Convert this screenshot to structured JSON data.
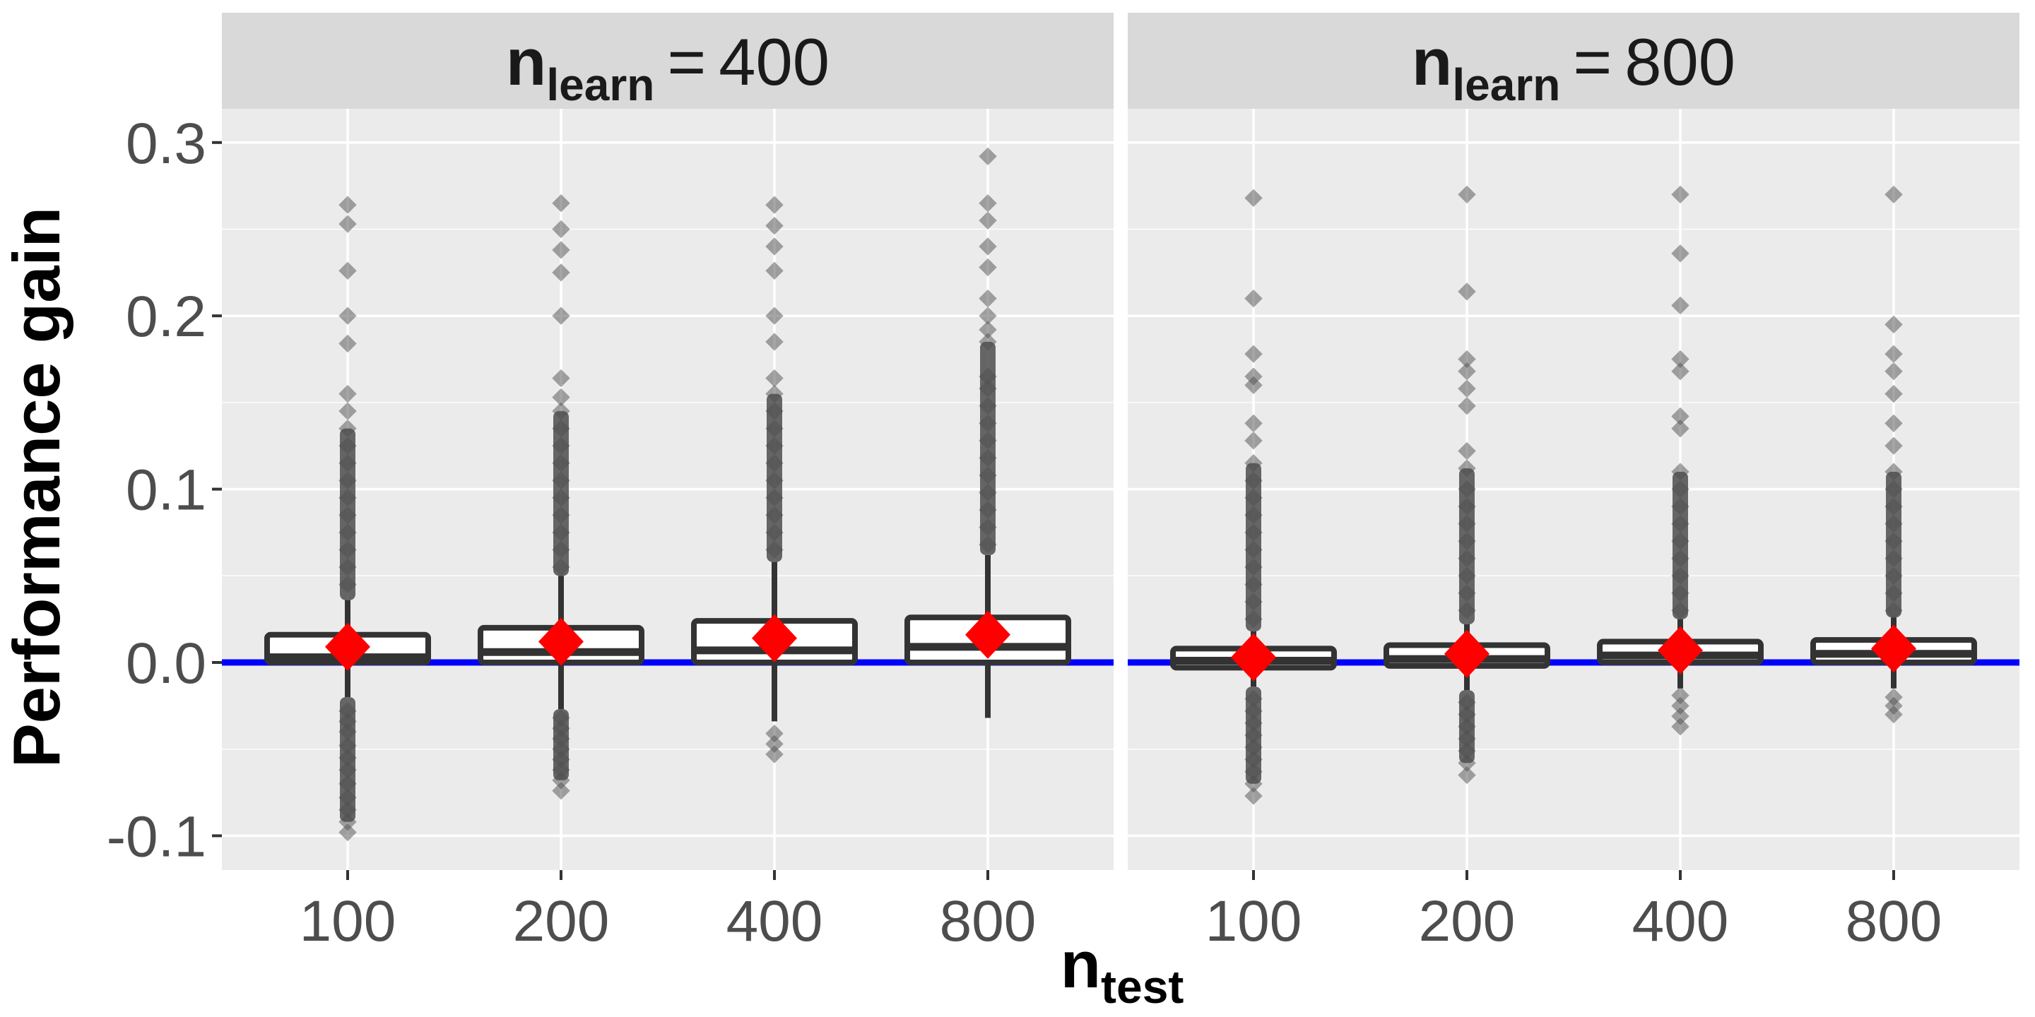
{
  "colors": {
    "panel_bg": "#ebebeb",
    "strip_bg": "#d9d9d9",
    "grid": "#ffffff",
    "box": "#333333",
    "outlier": "#4d4d4d",
    "mean_marker": "#ff0000",
    "reference_line": "#0000ff"
  },
  "chart_data": {
    "type": "boxplot",
    "xlabel": {
      "main": "n",
      "sub": "test"
    },
    "ylabel": "Performance gain",
    "ylim": [
      -0.1,
      0.3
    ],
    "yticks": [
      -0.1,
      0.0,
      0.1,
      0.2,
      0.3
    ],
    "ytick_labels": [
      "-0.1",
      "0.0",
      "0.1",
      "0.2",
      "0.3"
    ],
    "categories": [
      "100",
      "200",
      "400",
      "800"
    ],
    "reference_line_y": 0,
    "grid": true,
    "facets": [
      {
        "label": {
          "main": "n",
          "sub": "learn",
          "rel": "=",
          "value": "400"
        },
        "boxes": [
          {
            "x": "100",
            "q1": 0.0,
            "median": 0.003,
            "q3": 0.016,
            "whisker_low": -0.02,
            "whisker_high": 0.036,
            "mean": 0.009,
            "outliers": [
              -0.098,
              -0.092,
              -0.085,
              -0.078,
              -0.07,
              -0.062,
              -0.055,
              -0.048,
              -0.04,
              -0.034,
              -0.028,
              0.045,
              0.055,
              0.065,
              0.075,
              0.085,
              0.095,
              0.105,
              0.115,
              0.125,
              0.135,
              0.145,
              0.155,
              0.184,
              0.2,
              0.226,
              0.253,
              0.264
            ]
          },
          {
            "x": "200",
            "q1": 0.0,
            "median": 0.006,
            "q3": 0.02,
            "whisker_low": -0.027,
            "whisker_high": 0.05,
            "mean": 0.012,
            "outliers": [
              -0.074,
              -0.068,
              -0.062,
              -0.056,
              -0.05,
              -0.044,
              -0.038,
              -0.032,
              0.055,
              0.065,
              0.075,
              0.085,
              0.095,
              0.105,
              0.115,
              0.125,
              0.135,
              0.145,
              0.153,
              0.164,
              0.2,
              0.225,
              0.238,
              0.25,
              0.265
            ]
          },
          {
            "x": "400",
            "q1": 0.0,
            "median": 0.007,
            "q3": 0.024,
            "whisker_low": -0.034,
            "whisker_high": 0.058,
            "mean": 0.014,
            "outliers": [
              -0.053,
              -0.047,
              -0.041,
              0.065,
              0.075,
              0.085,
              0.095,
              0.105,
              0.115,
              0.125,
              0.135,
              0.145,
              0.155,
              0.164,
              0.185,
              0.2,
              0.226,
              0.24,
              0.252,
              0.264
            ]
          },
          {
            "x": "800",
            "q1": 0.0,
            "median": 0.009,
            "q3": 0.026,
            "whisker_low": -0.032,
            "whisker_high": 0.062,
            "mean": 0.016,
            "outliers": [
              0.068,
              0.078,
              0.088,
              0.098,
              0.108,
              0.118,
              0.128,
              0.138,
              0.148,
              0.158,
              0.165,
              0.185,
              0.192,
              0.2,
              0.21,
              0.228,
              0.24,
              0.255,
              0.265,
              0.292
            ]
          }
        ]
      },
      {
        "label": {
          "main": "n",
          "sub": "learn",
          "rel": "=",
          "value": "800"
        },
        "boxes": [
          {
            "x": "100",
            "q1": -0.003,
            "median": 0.001,
            "q3": 0.008,
            "whisker_low": -0.014,
            "whisker_high": 0.018,
            "mean": 0.003,
            "outliers": [
              -0.077,
              -0.07,
              -0.063,
              -0.056,
              -0.049,
              -0.042,
              -0.035,
              -0.028,
              -0.021,
              0.025,
              0.035,
              0.045,
              0.055,
              0.065,
              0.075,
              0.085,
              0.095,
              0.105,
              0.115,
              0.128,
              0.138,
              0.16,
              0.165,
              0.178,
              0.21,
              0.268
            ]
          },
          {
            "x": "200",
            "q1": -0.002,
            "median": 0.002,
            "q3": 0.01,
            "whisker_low": -0.016,
            "whisker_high": 0.022,
            "mean": 0.005,
            "outliers": [
              -0.065,
              -0.058,
              -0.051,
              -0.044,
              -0.037,
              -0.03,
              -0.023,
              0.03,
              0.04,
              0.05,
              0.06,
              0.07,
              0.08,
              0.09,
              0.1,
              0.112,
              0.122,
              0.148,
              0.158,
              0.168,
              0.175,
              0.214,
              0.27
            ]
          },
          {
            "x": "400",
            "q1": 0.0,
            "median": 0.004,
            "q3": 0.012,
            "whisker_low": -0.015,
            "whisker_high": 0.025,
            "mean": 0.007,
            "outliers": [
              -0.037,
              -0.031,
              -0.025,
              -0.019,
              0.03,
              0.04,
              0.05,
              0.06,
              0.07,
              0.08,
              0.09,
              0.1,
              0.11,
              0.135,
              0.142,
              0.168,
              0.175,
              0.206,
              0.236,
              0.27
            ]
          },
          {
            "x": "800",
            "q1": 0.0,
            "median": 0.005,
            "q3": 0.013,
            "whisker_low": -0.015,
            "whisker_high": 0.026,
            "mean": 0.008,
            "outliers": [
              -0.03,
              -0.025,
              -0.02,
              0.03,
              0.04,
              0.05,
              0.06,
              0.07,
              0.08,
              0.09,
              0.1,
              0.11,
              0.125,
              0.138,
              0.155,
              0.168,
              0.178,
              0.195,
              0.27
            ]
          }
        ]
      }
    ]
  }
}
